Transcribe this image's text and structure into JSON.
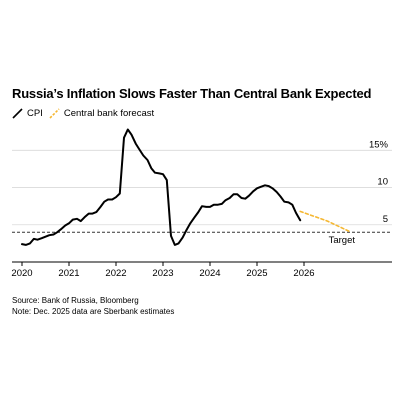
{
  "title": "Russia’s Inflation Slows Faster Than Central Bank Expected",
  "legend": [
    {
      "label": "CPI",
      "color": "#000000",
      "dashed": false
    },
    {
      "label": "Central bank forecast",
      "color": "#f5b731",
      "dashed": true
    }
  ],
  "footer": {
    "source": "Source: Bank of Russia, Bloomberg",
    "note": "Note: Dec. 2025 data are Sberbank estimates"
  },
  "chart_data": {
    "type": "line",
    "xlim": [
      2020.0,
      2027.0
    ],
    "ylim": [
      0,
      18
    ],
    "x_ticks": [
      {
        "value": 2020.0,
        "label": "2020"
      },
      {
        "value": 2021.0,
        "label": "2021"
      },
      {
        "value": 2022.0,
        "label": "2022"
      },
      {
        "value": 2023.0,
        "label": "2023"
      },
      {
        "value": 2024.0,
        "label": "2024"
      },
      {
        "value": 2025.0,
        "label": "2025"
      },
      {
        "value": 2026.0,
        "label": "2026"
      }
    ],
    "y_ticks": [
      {
        "value": 5,
        "label": "5"
      },
      {
        "value": 10,
        "label": "10"
      },
      {
        "value": 15,
        "label": "15%"
      }
    ],
    "grid": true,
    "series": [
      {
        "name": "CPI",
        "color": "#000000",
        "dashed": false,
        "x": [
          2020.0,
          2020.08,
          2020.17,
          2020.25,
          2020.33,
          2020.42,
          2020.5,
          2020.58,
          2020.67,
          2020.75,
          2020.83,
          2020.92,
          2021.0,
          2021.08,
          2021.17,
          2021.25,
          2021.33,
          2021.42,
          2021.5,
          2021.58,
          2021.67,
          2021.75,
          2021.83,
          2021.92,
          2022.0,
          2022.08,
          2022.17,
          2022.25,
          2022.33,
          2022.42,
          2022.5,
          2022.58,
          2022.67,
          2022.75,
          2022.83,
          2022.92,
          2023.0,
          2023.08,
          2023.17,
          2023.25,
          2023.33,
          2023.42,
          2023.5,
          2023.58,
          2023.67,
          2023.75,
          2023.83,
          2023.92,
          2024.0,
          2024.08,
          2024.17,
          2024.25,
          2024.33,
          2024.42,
          2024.5,
          2024.58,
          2024.67,
          2024.75,
          2024.83,
          2024.92,
          2025.0,
          2025.08,
          2025.17,
          2025.25,
          2025.33,
          2025.42,
          2025.5,
          2025.58,
          2025.67,
          2025.75,
          2025.83,
          2025.92
        ],
        "values": [
          2.4,
          2.3,
          2.5,
          3.1,
          3.0,
          3.2,
          3.4,
          3.6,
          3.7,
          4.0,
          4.4,
          4.9,
          5.2,
          5.7,
          5.8,
          5.5,
          6.0,
          6.5,
          6.5,
          6.7,
          7.4,
          8.1,
          8.4,
          8.4,
          8.7,
          9.2,
          16.7,
          17.8,
          17.1,
          15.9,
          15.1,
          14.3,
          13.7,
          12.6,
          12.0,
          11.9,
          11.8,
          11.0,
          3.5,
          2.3,
          2.5,
          3.3,
          4.3,
          5.2,
          6.0,
          6.7,
          7.5,
          7.4,
          7.4,
          7.7,
          7.7,
          7.8,
          8.3,
          8.6,
          9.1,
          9.1,
          8.6,
          8.5,
          8.9,
          9.5,
          9.9,
          10.1,
          10.3,
          10.2,
          9.9,
          9.4,
          8.8,
          8.1,
          8.0,
          7.7,
          6.6,
          5.6
        ]
      },
      {
        "name": "Central bank forecast",
        "color": "#f5b731",
        "dashed": true,
        "x": [
          2025.92,
          2026.5,
          2027.0
        ],
        "values": [
          6.8,
          5.5,
          4.0
        ]
      }
    ],
    "reference_lines": [
      {
        "value": 4,
        "label": "Target",
        "style": "dashed",
        "color": "#333333"
      }
    ]
  }
}
